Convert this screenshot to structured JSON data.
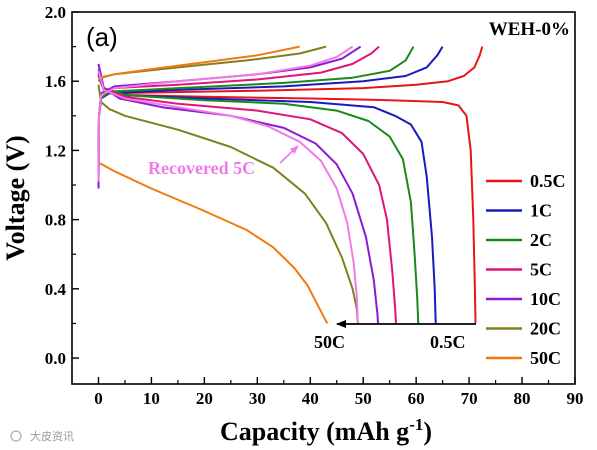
{
  "chart_data": {
    "type": "line",
    "panel_label": "(a)",
    "sample_label": "WEH-0%",
    "xlabel": "Capacity (mAh g",
    "xlabel_sup": "-1",
    "xlabel_end": ")",
    "ylabel": "Voltage (V)",
    "xlim": [
      -5,
      90
    ],
    "ylim": [
      -0.15,
      2.0
    ],
    "xticks": [
      "0",
      "10",
      "20",
      "30",
      "40",
      "50",
      "60",
      "70",
      "80",
      "90"
    ],
    "yticks": [
      "0.0",
      "0.4",
      "0.8",
      "1.2",
      "1.6",
      "2.0"
    ],
    "grid": false,
    "legend_position": "right",
    "series": [
      {
        "name": "0.5C",
        "color": "#e8141b",
        "charge": [
          [
            0,
            1.14
          ],
          [
            0.1,
            1.4
          ],
          [
            0.5,
            1.5
          ],
          [
            2,
            1.53
          ],
          [
            10,
            1.535
          ],
          [
            30,
            1.545
          ],
          [
            50,
            1.56
          ],
          [
            60,
            1.58
          ],
          [
            66,
            1.6
          ],
          [
            69,
            1.63
          ],
          [
            71,
            1.68
          ],
          [
            72,
            1.75
          ],
          [
            72.5,
            1.8
          ]
        ],
        "discharge": [
          [
            0,
            1.63
          ],
          [
            1,
            1.55
          ],
          [
            5,
            1.52
          ],
          [
            20,
            1.51
          ],
          [
            40,
            1.5
          ],
          [
            55,
            1.49
          ],
          [
            65,
            1.48
          ],
          [
            68,
            1.46
          ],
          [
            69.5,
            1.4
          ],
          [
            70.3,
            1.2
          ],
          [
            70.8,
            0.8
          ],
          [
            71.1,
            0.4
          ],
          [
            71.2,
            0.2
          ]
        ]
      },
      {
        "name": "1C",
        "color": "#1a1ac0",
        "charge": [
          [
            0,
            1.1
          ],
          [
            0.1,
            1.4
          ],
          [
            0.5,
            1.5
          ],
          [
            2,
            1.53
          ],
          [
            15,
            1.55
          ],
          [
            35,
            1.57
          ],
          [
            50,
            1.6
          ],
          [
            58,
            1.63
          ],
          [
            62,
            1.68
          ],
          [
            64,
            1.75
          ],
          [
            65,
            1.8
          ]
        ],
        "discharge": [
          [
            0,
            1.64
          ],
          [
            1,
            1.55
          ],
          [
            5,
            1.52
          ],
          [
            20,
            1.5
          ],
          [
            40,
            1.48
          ],
          [
            52,
            1.45
          ],
          [
            56,
            1.4
          ],
          [
            59,
            1.35
          ],
          [
            61,
            1.25
          ],
          [
            62,
            1.05
          ],
          [
            63,
            0.7
          ],
          [
            63.5,
            0.4
          ],
          [
            63.7,
            0.2
          ]
        ]
      },
      {
        "name": "2C",
        "color": "#1a8a1a",
        "charge": [
          [
            0,
            1.05
          ],
          [
            0.1,
            1.4
          ],
          [
            0.5,
            1.5
          ],
          [
            2,
            1.54
          ],
          [
            15,
            1.56
          ],
          [
            35,
            1.59
          ],
          [
            48,
            1.62
          ],
          [
            55,
            1.66
          ],
          [
            58,
            1.72
          ],
          [
            59.5,
            1.8
          ]
        ],
        "discharge": [
          [
            0,
            1.65
          ],
          [
            1,
            1.56
          ],
          [
            5,
            1.52
          ],
          [
            20,
            1.49
          ],
          [
            35,
            1.47
          ],
          [
            45,
            1.43
          ],
          [
            51,
            1.37
          ],
          [
            55,
            1.28
          ],
          [
            57.5,
            1.15
          ],
          [
            59,
            0.9
          ],
          [
            59.7,
            0.6
          ],
          [
            60.2,
            0.35
          ],
          [
            60.4,
            0.2
          ]
        ]
      },
      {
        "name": "5C",
        "color": "#e0157a",
        "charge": [
          [
            0,
            1.0
          ],
          [
            0.1,
            1.4
          ],
          [
            0.5,
            1.52
          ],
          [
            3,
            1.56
          ],
          [
            15,
            1.58
          ],
          [
            30,
            1.61
          ],
          [
            42,
            1.65
          ],
          [
            48,
            1.7
          ],
          [
            51.5,
            1.76
          ],
          [
            53,
            1.8
          ]
        ],
        "discharge": [
          [
            0,
            1.67
          ],
          [
            1,
            1.56
          ],
          [
            5,
            1.51
          ],
          [
            15,
            1.47
          ],
          [
            30,
            1.43
          ],
          [
            40,
            1.38
          ],
          [
            46,
            1.3
          ],
          [
            50,
            1.18
          ],
          [
            53,
            1.0
          ],
          [
            54.5,
            0.8
          ],
          [
            55.5,
            0.5
          ],
          [
            56,
            0.3
          ],
          [
            56.2,
            0.2
          ]
        ]
      },
      {
        "name": "10C",
        "color": "#8a1ad0",
        "charge": [
          [
            0,
            0.98
          ],
          [
            0.1,
            1.4
          ],
          [
            0.5,
            1.53
          ],
          [
            3,
            1.57
          ],
          [
            15,
            1.6
          ],
          [
            30,
            1.64
          ],
          [
            40,
            1.68
          ],
          [
            46,
            1.73
          ],
          [
            49.5,
            1.8
          ]
        ],
        "discharge": [
          [
            0,
            1.7
          ],
          [
            1,
            1.56
          ],
          [
            4,
            1.5
          ],
          [
            12,
            1.45
          ],
          [
            25,
            1.4
          ],
          [
            35,
            1.33
          ],
          [
            41,
            1.24
          ],
          [
            45,
            1.12
          ],
          [
            48,
            0.95
          ],
          [
            50.5,
            0.7
          ],
          [
            52,
            0.45
          ],
          [
            52.7,
            0.25
          ],
          [
            52.8,
            0.2
          ]
        ]
      },
      {
        "name": "20C",
        "color": "#808020",
        "charge": [
          [
            0,
            1.6
          ],
          [
            0.5,
            1.62
          ],
          [
            3,
            1.64
          ],
          [
            15,
            1.68
          ],
          [
            28,
            1.72
          ],
          [
            38,
            1.76
          ],
          [
            43,
            1.8
          ]
        ],
        "discharge": [
          [
            0,
            1.58
          ],
          [
            0.5,
            1.48
          ],
          [
            2,
            1.44
          ],
          [
            5,
            1.4
          ],
          [
            15,
            1.32
          ],
          [
            25,
            1.22
          ],
          [
            33,
            1.1
          ],
          [
            39,
            0.95
          ],
          [
            43,
            0.78
          ],
          [
            46,
            0.58
          ],
          [
            48,
            0.4
          ],
          [
            48.8,
            0.28
          ],
          [
            49,
            0.2
          ]
        ]
      },
      {
        "name": "50C",
        "color": "#f07a10",
        "charge": [
          [
            0,
            1.62
          ],
          [
            3,
            1.64
          ],
          [
            10,
            1.67
          ],
          [
            20,
            1.71
          ],
          [
            30,
            1.75
          ],
          [
            38,
            1.8
          ]
        ],
        "discharge": [
          [
            0,
            1.13
          ],
          [
            3,
            1.08
          ],
          [
            10,
            0.98
          ],
          [
            20,
            0.85
          ],
          [
            28,
            0.74
          ],
          [
            33,
            0.64
          ],
          [
            37,
            0.52
          ],
          [
            39.5,
            0.42
          ],
          [
            41.5,
            0.3
          ],
          [
            43.2,
            0.2
          ]
        ]
      },
      {
        "name": "Recovered 5C",
        "color": "#f07ae8",
        "charge": [
          [
            0,
            1.02
          ],
          [
            0.1,
            1.4
          ],
          [
            0.5,
            1.52
          ],
          [
            3,
            1.56
          ],
          [
            15,
            1.6
          ],
          [
            30,
            1.64
          ],
          [
            40,
            1.69
          ],
          [
            45,
            1.74
          ],
          [
            48,
            1.8
          ]
        ],
        "discharge": [
          [
            0,
            1.66
          ],
          [
            1,
            1.55
          ],
          [
            5,
            1.5
          ],
          [
            15,
            1.45
          ],
          [
            25,
            1.4
          ],
          [
            32,
            1.34
          ],
          [
            38,
            1.25
          ],
          [
            42,
            1.14
          ],
          [
            45,
            0.98
          ],
          [
            47,
            0.78
          ],
          [
            48.2,
            0.55
          ],
          [
            48.8,
            0.35
          ],
          [
            49,
            0.2
          ]
        ]
      }
    ],
    "legend_entries": [
      "0.5C",
      "1C",
      "2C",
      "5C",
      "10C",
      "20C",
      "50C"
    ],
    "annotations": {
      "recovered_label": "Recovered 5C",
      "arrow_left_label": "50C",
      "arrow_right_label": "0.5C"
    }
  },
  "watermark": "大皮资讯"
}
